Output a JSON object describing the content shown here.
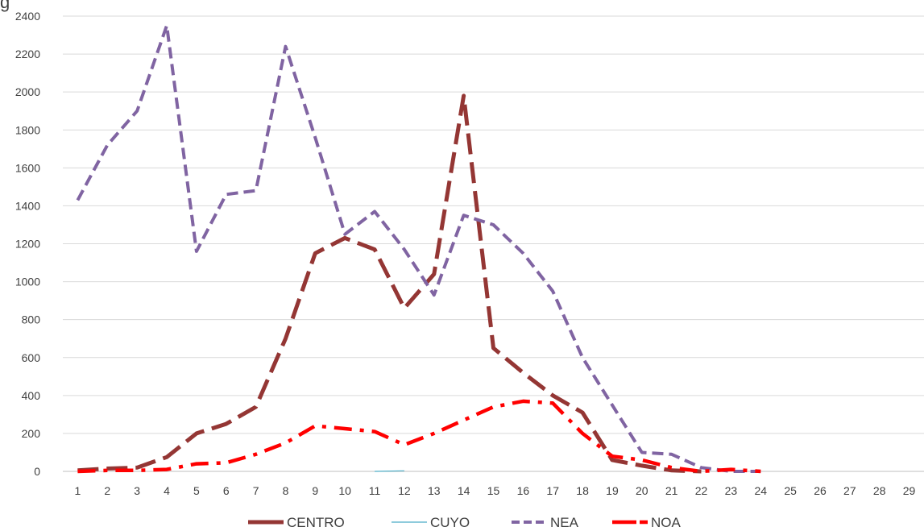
{
  "chart_data": {
    "type": "line",
    "title": "",
    "xlabel": "",
    "ylabel": "",
    "x": [
      1,
      2,
      3,
      4,
      5,
      6,
      7,
      8,
      9,
      10,
      11,
      12,
      13,
      14,
      15,
      16,
      17,
      18,
      19,
      20,
      21,
      22,
      23,
      24,
      25,
      26,
      27,
      28,
      29
    ],
    "ylim": [
      0,
      2400
    ],
    "yticks": [
      0,
      200,
      400,
      600,
      800,
      1000,
      1200,
      1400,
      1600,
      1800,
      2000,
      2200,
      2400
    ],
    "grid": true,
    "legend": "bottom",
    "series": [
      {
        "name": "CENTRO",
        "color": "#943634",
        "dash": "long-dash",
        "values": [
          5,
          15,
          20,
          75,
          200,
          250,
          340,
          700,
          1150,
          1230,
          1170,
          860,
          1040,
          1980,
          650,
          520,
          400,
          310,
          60,
          30,
          5,
          0,
          null,
          null,
          null,
          null,
          null,
          null,
          null
        ]
      },
      {
        "name": "CUYO",
        "color": "#4BACC6",
        "dash": "solid-thin",
        "values": [
          null,
          null,
          null,
          null,
          null,
          null,
          null,
          null,
          null,
          null,
          0,
          3,
          null,
          null,
          null,
          null,
          null,
          null,
          null,
          null,
          null,
          null,
          null,
          null,
          null,
          null,
          null,
          null,
          null
        ]
      },
      {
        "name": "NEA",
        "color": "#8064A2",
        "dash": "dash",
        "values": [
          1430,
          1720,
          1900,
          2350,
          1160,
          1460,
          1480,
          2240,
          1760,
          1250,
          1370,
          1170,
          930,
          1350,
          1300,
          1150,
          950,
          600,
          350,
          100,
          90,
          20,
          0,
          0,
          null,
          null,
          null,
          null,
          null
        ]
      },
      {
        "name": "NOA",
        "color": "#FF0000",
        "dash": "dash-dot",
        "values": [
          0,
          5,
          5,
          10,
          40,
          45,
          90,
          150,
          240,
          225,
          210,
          140,
          200,
          270,
          340,
          370,
          360,
          200,
          80,
          60,
          20,
          0,
          10,
          0,
          null,
          null,
          null,
          null,
          null
        ]
      }
    ]
  },
  "title_fragment": "g"
}
